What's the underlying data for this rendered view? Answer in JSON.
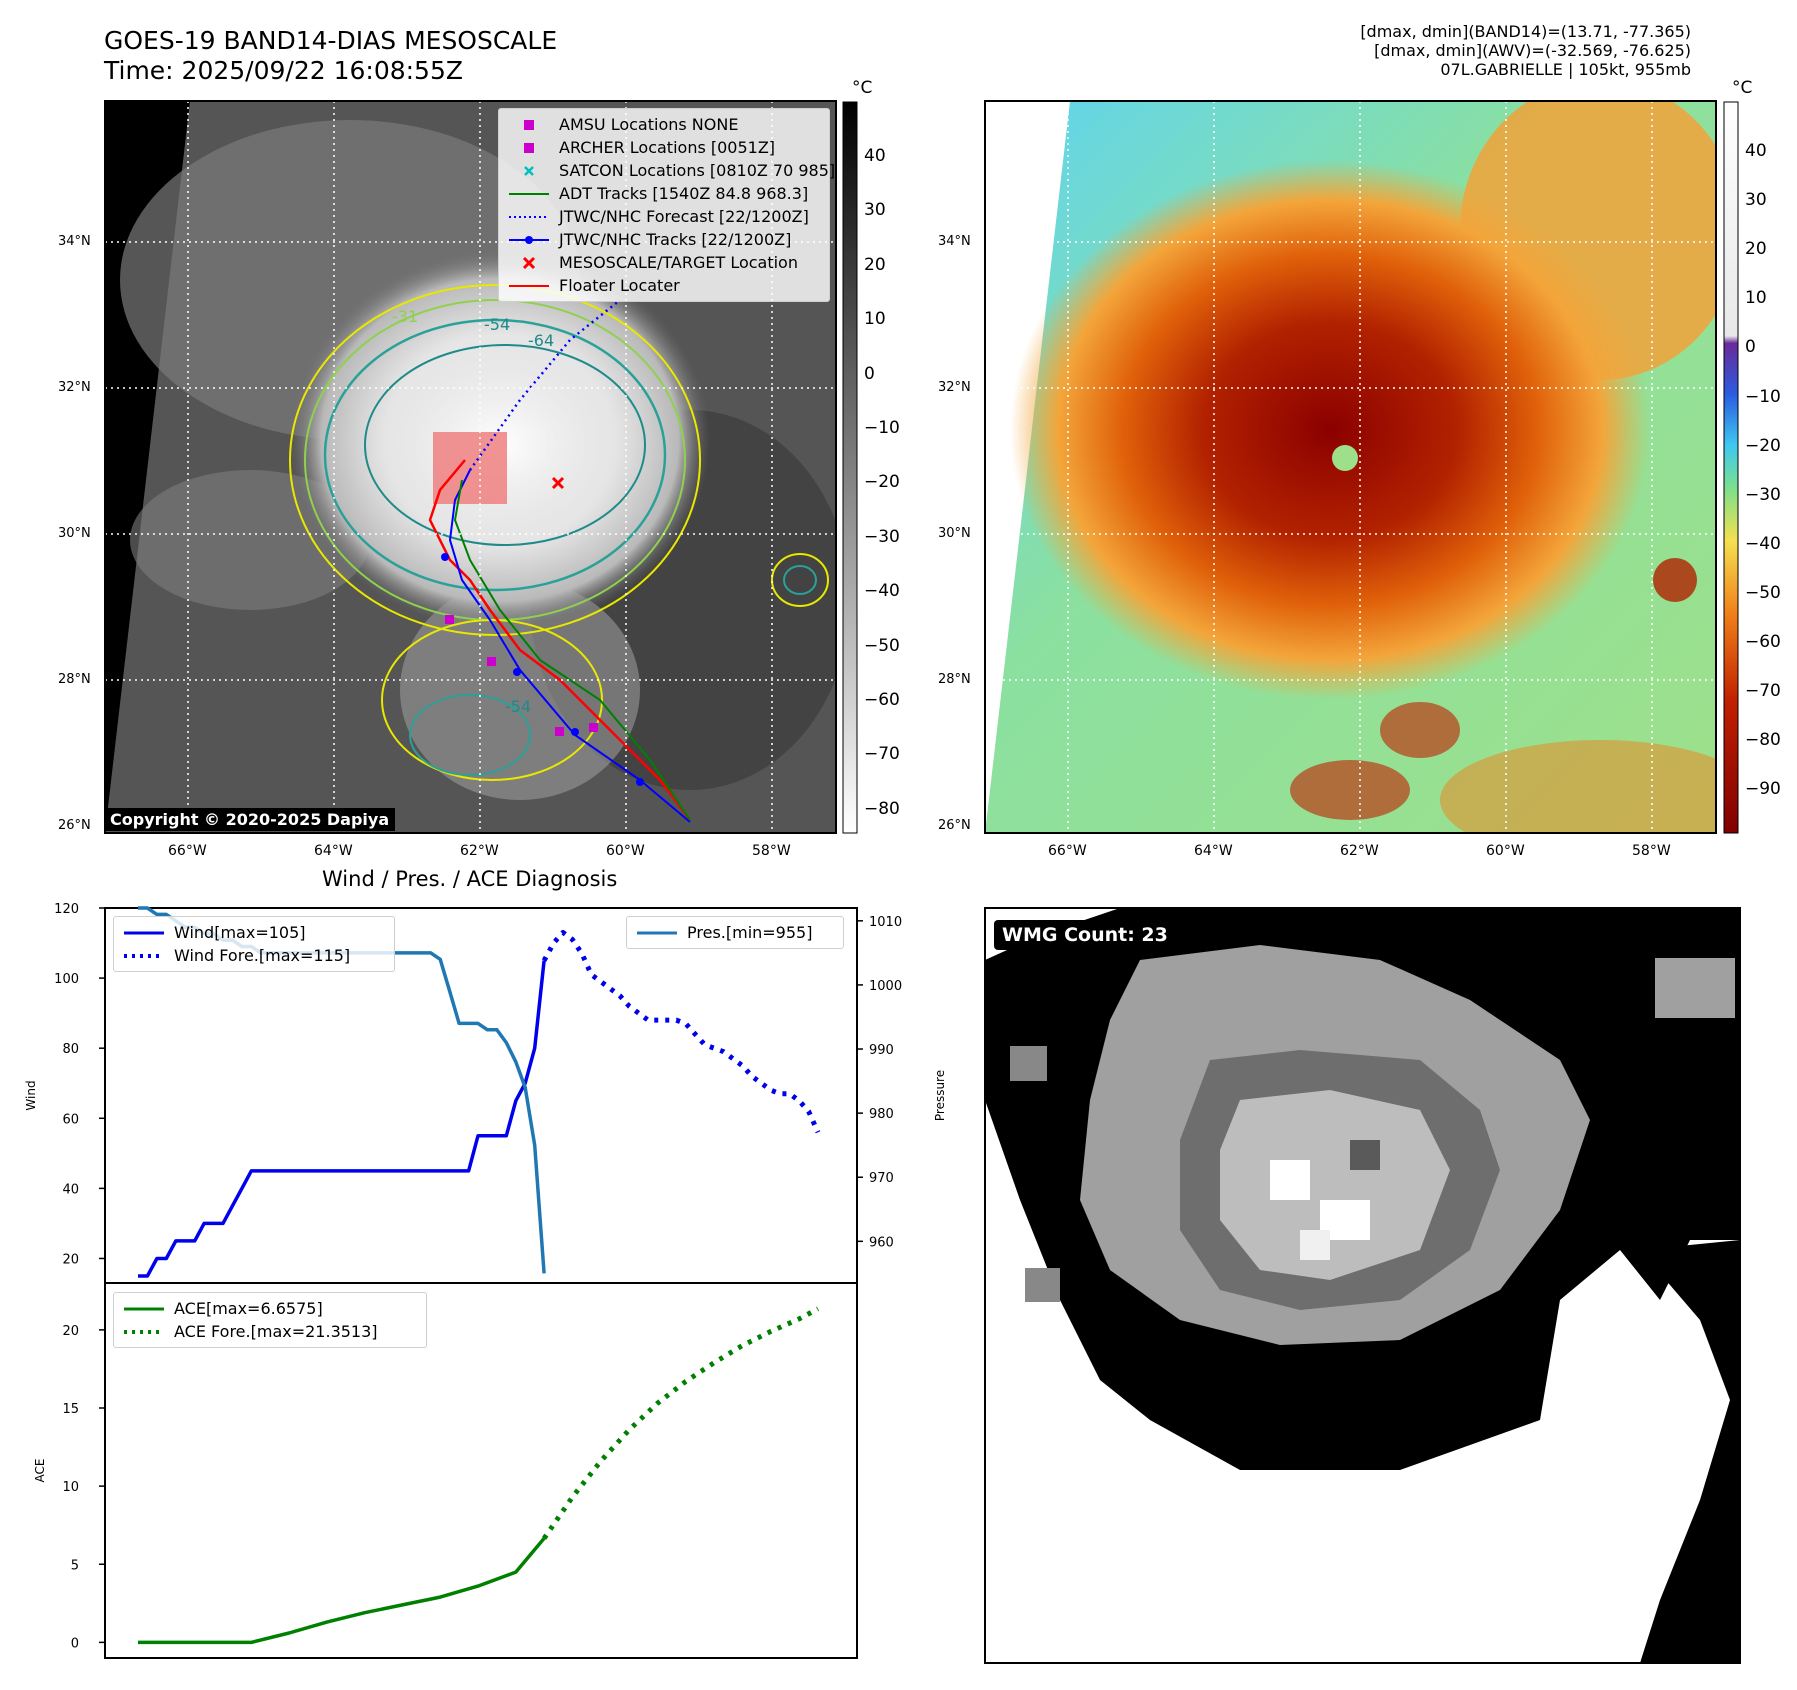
{
  "header": {
    "title_line1": "GOES-19 BAND14-DIAS MESOSCALE",
    "title_line2": "Time: 2025/09/22 16:08:55Z",
    "info_line1": "[dmax, dmin](BAND14)=(13.71, -77.365)",
    "info_line2": "[dmax, dmin](AWV)=(-32.569, -76.625)",
    "info_line3": "07L.GABRIELLE | 105kt, 955mb"
  },
  "map_axes": {
    "lat_labels": [
      "34°N",
      "32°N",
      "30°N",
      "28°N",
      "26°N"
    ],
    "lon_labels": [
      "66°W",
      "64°W",
      "62°W",
      "60°W",
      "58°W"
    ]
  },
  "panel_ir": {
    "colorbar_unit": "°C",
    "colorbar_ticks": [
      "40",
      "30",
      "20",
      "10",
      "0",
      "−10",
      "−20",
      "−30",
      "−40",
      "−50",
      "−60",
      "−70",
      "−80"
    ],
    "contour_labels": [
      "-54",
      "-64",
      "-31",
      "-54"
    ],
    "copyright": "Copyright © 2020-2025 Dapiya",
    "legend": [
      {
        "label": "AMSU Locations NONE",
        "symbol": "square",
        "color": "#cc00cc"
      },
      {
        "label": "ARCHER Locations [0051Z]",
        "symbol": "square",
        "color": "#cc00cc"
      },
      {
        "label": "SATCON Locations [0810Z 70 985]",
        "symbol": "cross",
        "color": "#00bfbf"
      },
      {
        "label": "ADT Tracks [1540Z 84.8 968.3]",
        "symbol": "line",
        "color": "#008000"
      },
      {
        "label": "JTWC/NHC Forecast [22/1200Z]",
        "symbol": "dotted",
        "color": "#0000ff"
      },
      {
        "label": "JTWC/NHC Tracks [22/1200Z]",
        "symbol": "line-dot",
        "color": "#0000ff"
      },
      {
        "label": "MESOSCALE/TARGET Location",
        "symbol": "x",
        "color": "#ff0000"
      },
      {
        "label": "Floater Locater",
        "symbol": "line",
        "color": "#ff0000"
      }
    ]
  },
  "panel_awv": {
    "colorbar_unit": "°C",
    "colorbar_ticks": [
      "40",
      "30",
      "20",
      "10",
      "0",
      "−10",
      "−20",
      "−30",
      "−40",
      "−50",
      "−60",
      "−70",
      "−80",
      "−90"
    ]
  },
  "panel_wmg": {
    "label": "WMG Count: 23"
  },
  "chart_data": [
    {
      "type": "line",
      "title": "Wind / Pres. / ACE Diagnosis",
      "ylabel": "Wind",
      "y2label": "Pressure",
      "ylim": [
        13,
        120
      ],
      "y2lim": [
        953.5,
        1012
      ],
      "yticks": [
        20,
        40,
        60,
        80,
        100,
        120
      ],
      "y2ticks": [
        960,
        970,
        980,
        990,
        1000,
        1010
      ],
      "legend_left": [
        "Wind[max=105]",
        "Wind Fore.[max=115]"
      ],
      "legend_right": [
        "Pres.[min=955]"
      ],
      "series": [
        {
          "name": "Wind[max=105]",
          "axis": "left",
          "color": "#0000ee",
          "style": "solid",
          "x": [
            0,
            1,
            2,
            3,
            4,
            5,
            6,
            7,
            8,
            9,
            10,
            11,
            12,
            13,
            14,
            15,
            16,
            17,
            18,
            19,
            20,
            21,
            22,
            23,
            24,
            25,
            26,
            27,
            28,
            29,
            30,
            31,
            32,
            33,
            34,
            35,
            36,
            37,
            38,
            39,
            40,
            41,
            42,
            43
          ],
          "y": [
            15,
            15,
            20,
            20,
            25,
            25,
            25,
            30,
            30,
            30,
            35,
            40,
            45,
            45,
            45,
            45,
            45,
            45,
            45,
            45,
            45,
            45,
            45,
            45,
            45,
            45,
            45,
            45,
            45,
            45,
            45,
            45,
            45,
            45,
            45,
            45,
            55,
            55,
            55,
            55,
            65,
            70,
            80,
            105
          ]
        },
        {
          "name": "Wind Fore.[max=115]",
          "axis": "left",
          "color": "#0000ee",
          "style": "dotted",
          "x": [
            43,
            44,
            45,
            46,
            47,
            48,
            49,
            50,
            51,
            52,
            53,
            54,
            55,
            56,
            57,
            58,
            59,
            60,
            61,
            62,
            63,
            64,
            65,
            66,
            67,
            68,
            69,
            70,
            71,
            72
          ],
          "y": [
            105,
            110,
            113,
            111,
            107,
            101,
            99,
            97,
            95,
            92,
            90,
            88,
            88,
            88,
            88,
            87,
            84,
            81,
            80,
            79,
            77,
            75,
            72,
            70,
            68,
            67,
            67,
            65,
            62,
            56
          ]
        },
        {
          "name": "Pres.[min=955]",
          "axis": "right",
          "color": "#1f77b4",
          "style": "solid",
          "x": [
            0,
            1,
            2,
            3,
            4,
            5,
            6,
            7,
            8,
            9,
            10,
            11,
            12,
            13,
            14,
            15,
            16,
            17,
            18,
            19,
            20,
            21,
            22,
            23,
            24,
            25,
            26,
            27,
            28,
            29,
            30,
            31,
            32,
            33,
            34,
            35,
            36,
            37,
            38,
            39,
            40,
            41,
            42,
            43
          ],
          "y": [
            1012,
            1012,
            1011,
            1011,
            1010,
            1009,
            1009,
            1008,
            1008,
            1007,
            1007,
            1006,
            1006,
            1005,
            1005,
            1005,
            1005,
            1005,
            1005,
            1005,
            1005,
            1005,
            1005,
            1005,
            1005,
            1005,
            1005,
            1005,
            1005,
            1005,
            1005,
            1005,
            1004,
            999,
            994,
            994,
            994,
            993,
            993,
            991,
            988,
            984,
            975,
            955
          ]
        }
      ]
    },
    {
      "type": "line",
      "ylabel": "ACE",
      "ylim": [
        -1,
        23
      ],
      "yticks": [
        0,
        5,
        10,
        15,
        20
      ],
      "legend": [
        "ACE[max=6.6575]",
        "ACE Fore.[max=21.3513]"
      ],
      "series": [
        {
          "name": "ACE[max=6.6575]",
          "color": "#008000",
          "style": "solid",
          "x": [
            0,
            4,
            8,
            12,
            16,
            20,
            24,
            28,
            32,
            36,
            40,
            43
          ],
          "y": [
            0,
            0,
            0,
            0,
            0.6,
            1.3,
            1.9,
            2.4,
            2.9,
            3.6,
            4.5,
            6.6575
          ]
        },
        {
          "name": "ACE Fore.[max=21.3513]",
          "color": "#008000",
          "style": "dotted",
          "x": [
            43,
            46,
            49,
            52,
            55,
            58,
            61,
            64,
            67,
            70,
            72
          ],
          "y": [
            6.6575,
            9.3,
            11.6,
            13.6,
            15.3,
            16.7,
            17.9,
            19.0,
            19.9,
            20.7,
            21.3513
          ]
        }
      ]
    }
  ]
}
